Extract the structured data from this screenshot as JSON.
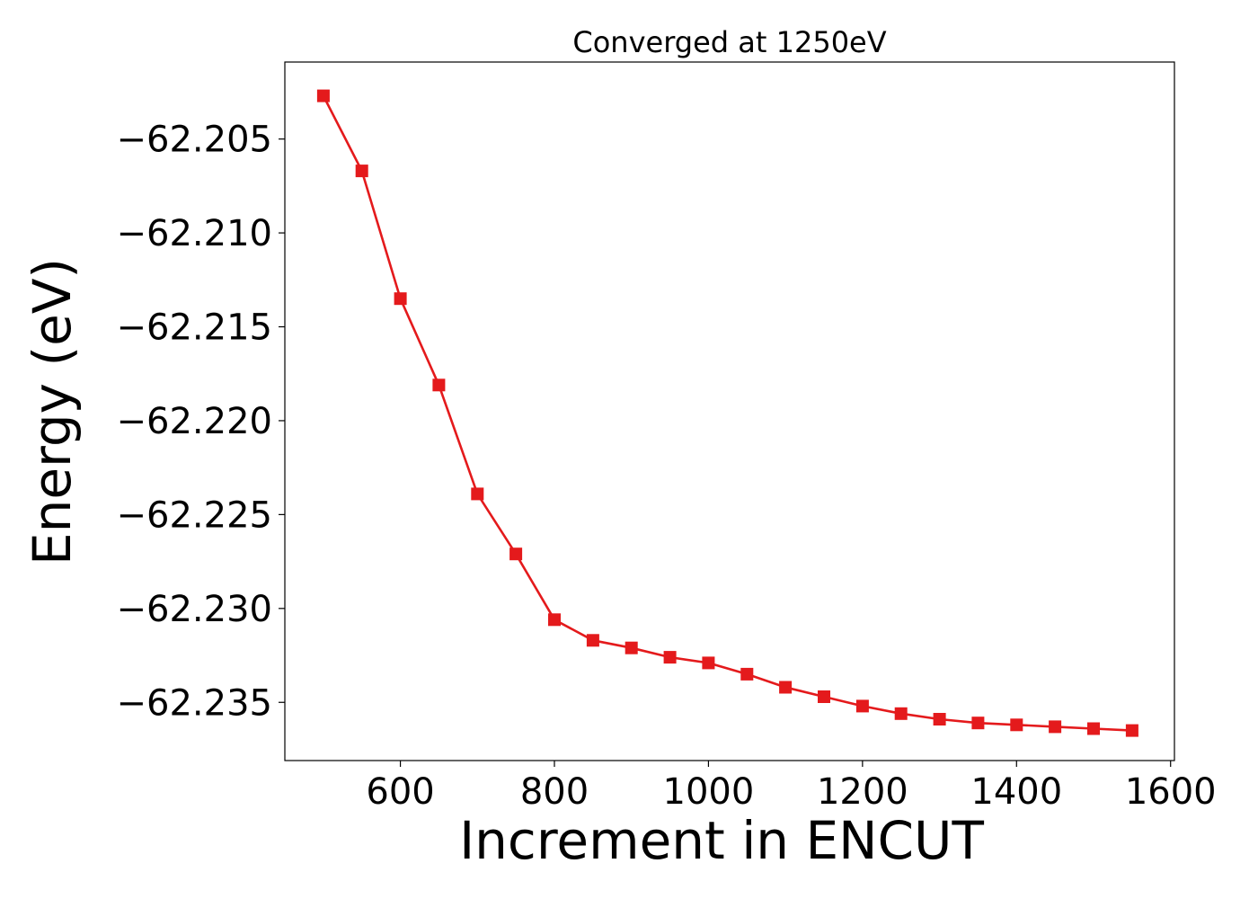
{
  "chart_data": {
    "type": "line",
    "title": "Converged at 1250eV",
    "xlabel": "Increment in ENCUT",
    "ylabel": "Energy (eV)",
    "xlim": [
      450,
      1605
    ],
    "ylim": [
      -62.2381,
      -62.2009
    ],
    "xticks": [
      600,
      800,
      1000,
      1200,
      1400,
      1600
    ],
    "xtick_labels": [
      "600",
      "800",
      "1000",
      "1200",
      "1400",
      "1600"
    ],
    "yticks": [
      -62.205,
      -62.21,
      -62.215,
      -62.22,
      -62.225,
      -62.23,
      -62.235
    ],
    "ytick_labels": [
      "−62.205",
      "−62.210",
      "−62.215",
      "−62.220",
      "−62.225",
      "−62.230",
      "−62.235"
    ],
    "grid": false,
    "legend": "none",
    "series": [
      {
        "color": "#e41a1c",
        "marker": "square",
        "x": [
          500,
          550,
          600,
          650,
          700,
          750,
          800,
          850,
          900,
          950,
          1000,
          1050,
          1100,
          1150,
          1200,
          1250,
          1300,
          1350,
          1400,
          1450,
          1500,
          1550
        ],
        "y": [
          -62.2027,
          -62.2067,
          -62.2135,
          -62.2181,
          -62.2239,
          -62.2271,
          -62.2306,
          -62.2317,
          -62.2321,
          -62.2326,
          -62.2329,
          -62.2335,
          -62.2342,
          -62.2347,
          -62.2352,
          -62.2356,
          -62.2359,
          -62.2361,
          -62.2362,
          -62.2363,
          -62.2364,
          -62.2365
        ]
      }
    ]
  }
}
